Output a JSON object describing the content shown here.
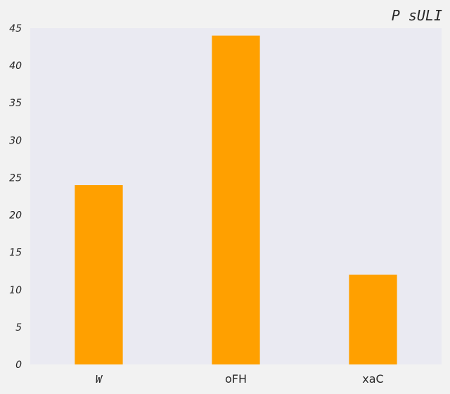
{
  "chart_data": {
    "type": "bar",
    "title": "P sULI",
    "categories": [
      "W",
      "oFH",
      "xaC"
    ],
    "values": [
      24,
      44,
      12
    ],
    "ylim": [
      0,
      45
    ],
    "yticks": [
      0,
      5,
      10,
      15,
      20,
      25,
      30,
      35,
      40,
      45
    ],
    "xlabel": "",
    "ylabel": "",
    "grid": false,
    "legend": "none",
    "colors": {
      "bar": "#ffa000",
      "plot_background": "#eaeaf2",
      "figure_background": "#f2f2f2",
      "text": "#262626"
    }
  }
}
